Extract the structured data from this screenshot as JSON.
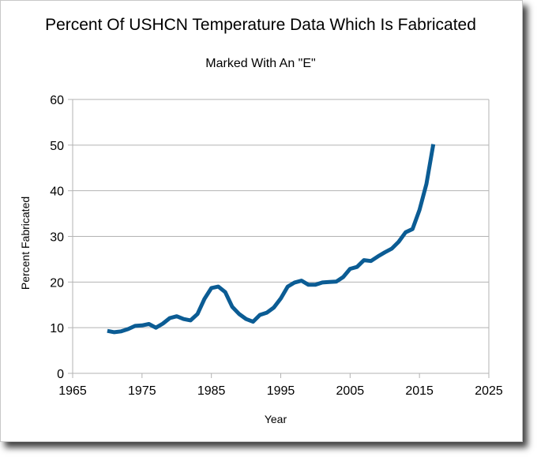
{
  "chart_data": {
    "type": "line",
    "title": "Percent Of USHCN Temperature Data Which Is Fabricated",
    "subtitle": "Marked With An \"E\"",
    "xlabel": "Year",
    "ylabel": "Percent Fabricated",
    "xlim": [
      1965,
      2025
    ],
    "ylim": [
      0,
      60
    ],
    "xticks": [
      1965,
      1975,
      1985,
      1995,
      2005,
      2015,
      2025
    ],
    "yticks": [
      0,
      10,
      20,
      30,
      40,
      50,
      60
    ],
    "grid": true,
    "legend": "none",
    "line_color": "#0b5c94",
    "series": [
      {
        "x": [
          1970,
          1971,
          1972,
          1973,
          1974,
          1975,
          1976,
          1977,
          1978,
          1979,
          1980,
          1981,
          1982,
          1983,
          1984,
          1985,
          1986,
          1987,
          1988,
          1989,
          1990,
          1991,
          1992,
          1993,
          1994,
          1995,
          1996,
          1997,
          1998,
          1999,
          2000,
          2001,
          2002,
          2003,
          2004,
          2005,
          2006,
          2007,
          2008,
          2009,
          2010,
          2011,
          2012,
          2013,
          2014,
          2015,
          2016,
          2017
        ],
        "y": [
          9.3,
          9.0,
          9.2,
          9.7,
          10.4,
          10.5,
          10.8,
          10.0,
          10.9,
          12.1,
          12.5,
          11.9,
          11.6,
          13.0,
          16.3,
          18.7,
          19.0,
          17.8,
          14.6,
          13.0,
          11.9,
          11.3,
          12.8,
          13.3,
          14.4,
          16.4,
          19.0,
          19.9,
          20.3,
          19.4,
          19.4,
          19.9,
          20.0,
          20.1,
          21.1,
          22.9,
          23.3,
          24.8,
          24.6,
          25.6,
          26.5,
          27.3,
          28.8,
          30.9,
          31.6,
          35.8,
          41.5,
          50.2
        ]
      }
    ]
  }
}
